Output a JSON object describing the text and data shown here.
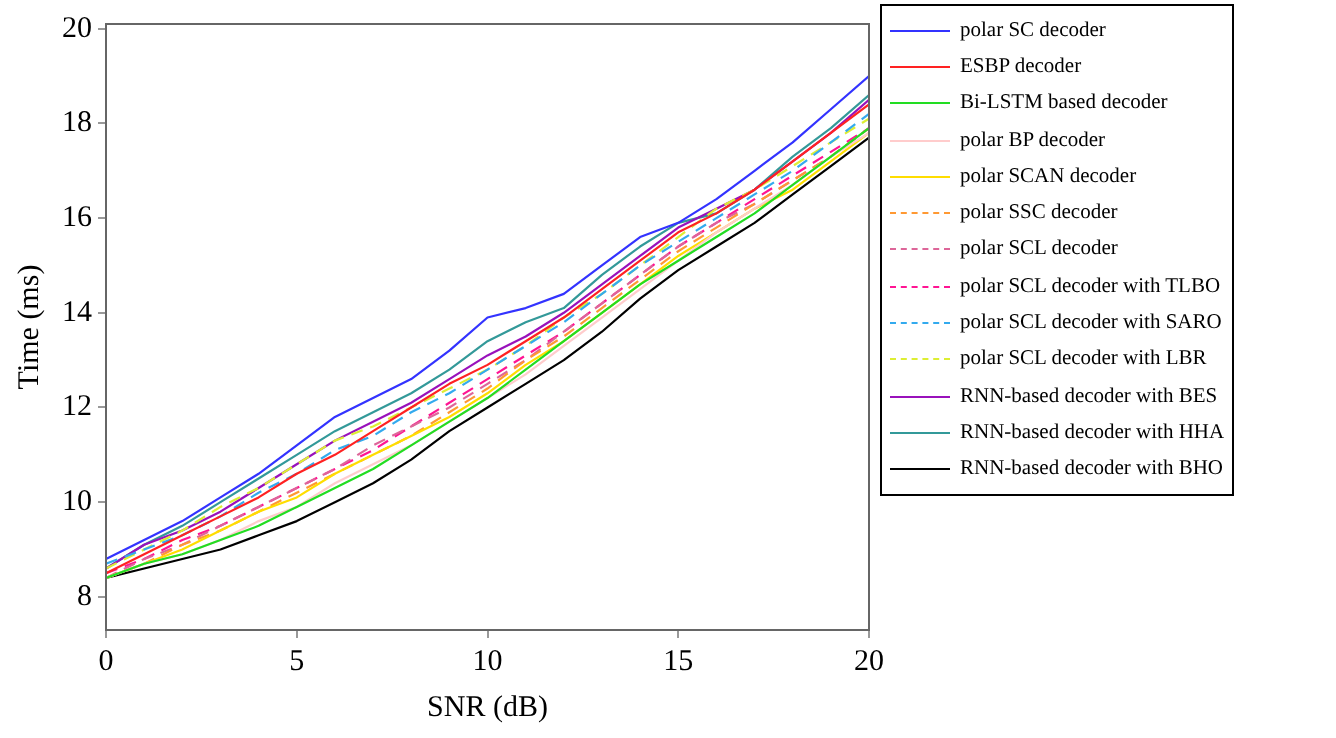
{
  "chart_data": {
    "type": "line",
    "xlabel": "SNR (dB)",
    "ylabel": "Time (ms)",
    "xlim": [
      0,
      20
    ],
    "xticks": [
      0,
      5,
      10,
      15,
      20
    ],
    "ylim": [
      7.3,
      20.1
    ],
    "yticks": [
      8,
      10,
      12,
      14,
      16,
      18,
      20
    ],
    "grid": false,
    "legend": "right",
    "marker": "none",
    "x": [
      0,
      1,
      2,
      3,
      4,
      5,
      6,
      7,
      8,
      9,
      10,
      11,
      12,
      13,
      14,
      15,
      16,
      17,
      18,
      19,
      20
    ],
    "series": [
      {
        "name": "polar SC decoder",
        "color": "#3333ff",
        "line_style": "solid",
        "values": [
          8.8,
          9.2,
          9.6,
          10.1,
          10.6,
          11.2,
          11.8,
          12.2,
          12.6,
          13.2,
          13.9,
          14.1,
          14.4,
          15.0,
          15.6,
          15.9,
          16.4,
          17.0,
          17.6,
          18.3,
          19.0
        ]
      },
      {
        "name": "ESBP decoder",
        "color": "#ff2222",
        "line_style": "solid",
        "values": [
          8.5,
          8.9,
          9.3,
          9.7,
          10.1,
          10.6,
          11.0,
          11.5,
          12.0,
          12.5,
          12.9,
          13.4,
          13.9,
          14.5,
          15.1,
          15.7,
          16.1,
          16.6,
          17.2,
          17.8,
          18.4
        ]
      },
      {
        "name": "Bi-LSTM based decoder",
        "color": "#22dd22",
        "line_style": "solid",
        "values": [
          8.4,
          8.7,
          8.9,
          9.2,
          9.5,
          9.9,
          10.3,
          10.7,
          11.2,
          11.7,
          12.2,
          12.8,
          13.4,
          14.0,
          14.6,
          15.1,
          15.6,
          16.1,
          16.7,
          17.3,
          17.9
        ]
      },
      {
        "name": "polar BP decoder",
        "color": "#ffcccc",
        "line_style": "solid",
        "values": [
          8.4,
          8.7,
          8.9,
          9.2,
          9.6,
          9.9,
          10.4,
          10.8,
          11.2,
          11.7,
          12.2,
          12.7,
          13.3,
          13.9,
          14.5,
          15.1,
          15.7,
          16.2,
          16.7,
          17.3,
          17.8
        ]
      },
      {
        "name": "polar SCAN decoder",
        "color": "#ffdd00",
        "line_style": "solid",
        "values": [
          8.4,
          8.7,
          9.0,
          9.4,
          9.8,
          10.1,
          10.6,
          11.0,
          11.4,
          11.8,
          12.3,
          12.9,
          13.4,
          14.0,
          14.6,
          15.2,
          15.7,
          16.2,
          16.6,
          17.2,
          17.8
        ]
      },
      {
        "name": "polar SSC decoder",
        "color": "#ff9933",
        "line_style": "dashed",
        "values": [
          8.4,
          8.7,
          9.1,
          9.4,
          9.8,
          10.2,
          10.6,
          11.0,
          11.4,
          11.9,
          12.4,
          13.0,
          13.5,
          14.1,
          14.7,
          15.3,
          15.8,
          16.3,
          16.8,
          17.3,
          17.9
        ]
      },
      {
        "name": "polar SCL decoder",
        "color": "#dd6699",
        "line_style": "dashed",
        "values": [
          8.4,
          8.8,
          9.1,
          9.5,
          9.9,
          10.3,
          10.7,
          11.2,
          11.6,
          12.0,
          12.5,
          13.0,
          13.6,
          14.2,
          14.8,
          15.4,
          15.9,
          16.3,
          16.8,
          17.3,
          17.9
        ]
      },
      {
        "name": "polar SCL decoder with TLBO",
        "color": "#ff1493",
        "line_style": "dashed",
        "values": [
          8.5,
          8.8,
          9.2,
          9.5,
          9.9,
          10.3,
          10.7,
          11.1,
          11.6,
          12.1,
          12.6,
          13.1,
          13.6,
          14.2,
          14.8,
          15.4,
          15.9,
          16.4,
          16.9,
          17.4,
          17.9
        ]
      },
      {
        "name": "polar SCL decoder with SARO",
        "color": "#33aaee",
        "line_style": "dashed",
        "values": [
          8.7,
          9.0,
          9.3,
          9.7,
          10.2,
          10.6,
          11.1,
          11.4,
          11.9,
          12.3,
          12.8,
          13.3,
          13.8,
          14.4,
          15.0,
          15.5,
          16.0,
          16.5,
          17.0,
          17.6,
          18.2
        ]
      },
      {
        "name": "polar SCL decoder with LBR",
        "color": "#ddee33",
        "line_style": "dashed",
        "values": [
          8.6,
          9.0,
          9.4,
          9.9,
          10.3,
          10.8,
          11.3,
          11.6,
          12.0,
          12.4,
          12.8,
          13.3,
          13.9,
          14.4,
          15.0,
          15.6,
          16.2,
          16.6,
          17.1,
          17.6,
          18.1
        ]
      },
      {
        "name": "RNN-based decoder with BES",
        "color": "#9911bb",
        "line_style": "solid",
        "values": [
          8.6,
          9.1,
          9.4,
          9.8,
          10.3,
          10.8,
          11.3,
          11.7,
          12.1,
          12.6,
          13.1,
          13.5,
          14.0,
          14.6,
          15.2,
          15.8,
          16.2,
          16.6,
          17.2,
          17.8,
          18.5
        ]
      },
      {
        "name": "RNN-based decoder with HHA",
        "color": "#339999",
        "line_style": "solid",
        "values": [
          8.6,
          9.1,
          9.5,
          10.0,
          10.5,
          11.0,
          11.5,
          11.9,
          12.3,
          12.8,
          13.4,
          13.8,
          14.1,
          14.8,
          15.4,
          15.9,
          16.1,
          16.6,
          17.3,
          17.9,
          18.6
        ]
      },
      {
        "name": "RNN-based decoder with BHO",
        "color": "#000000",
        "line_style": "solid",
        "values": [
          8.4,
          8.6,
          8.8,
          9.0,
          9.3,
          9.6,
          10.0,
          10.4,
          10.9,
          11.5,
          12.0,
          12.5,
          13.0,
          13.6,
          14.3,
          14.9,
          15.4,
          15.9,
          16.5,
          17.1,
          17.7
        ]
      }
    ]
  }
}
